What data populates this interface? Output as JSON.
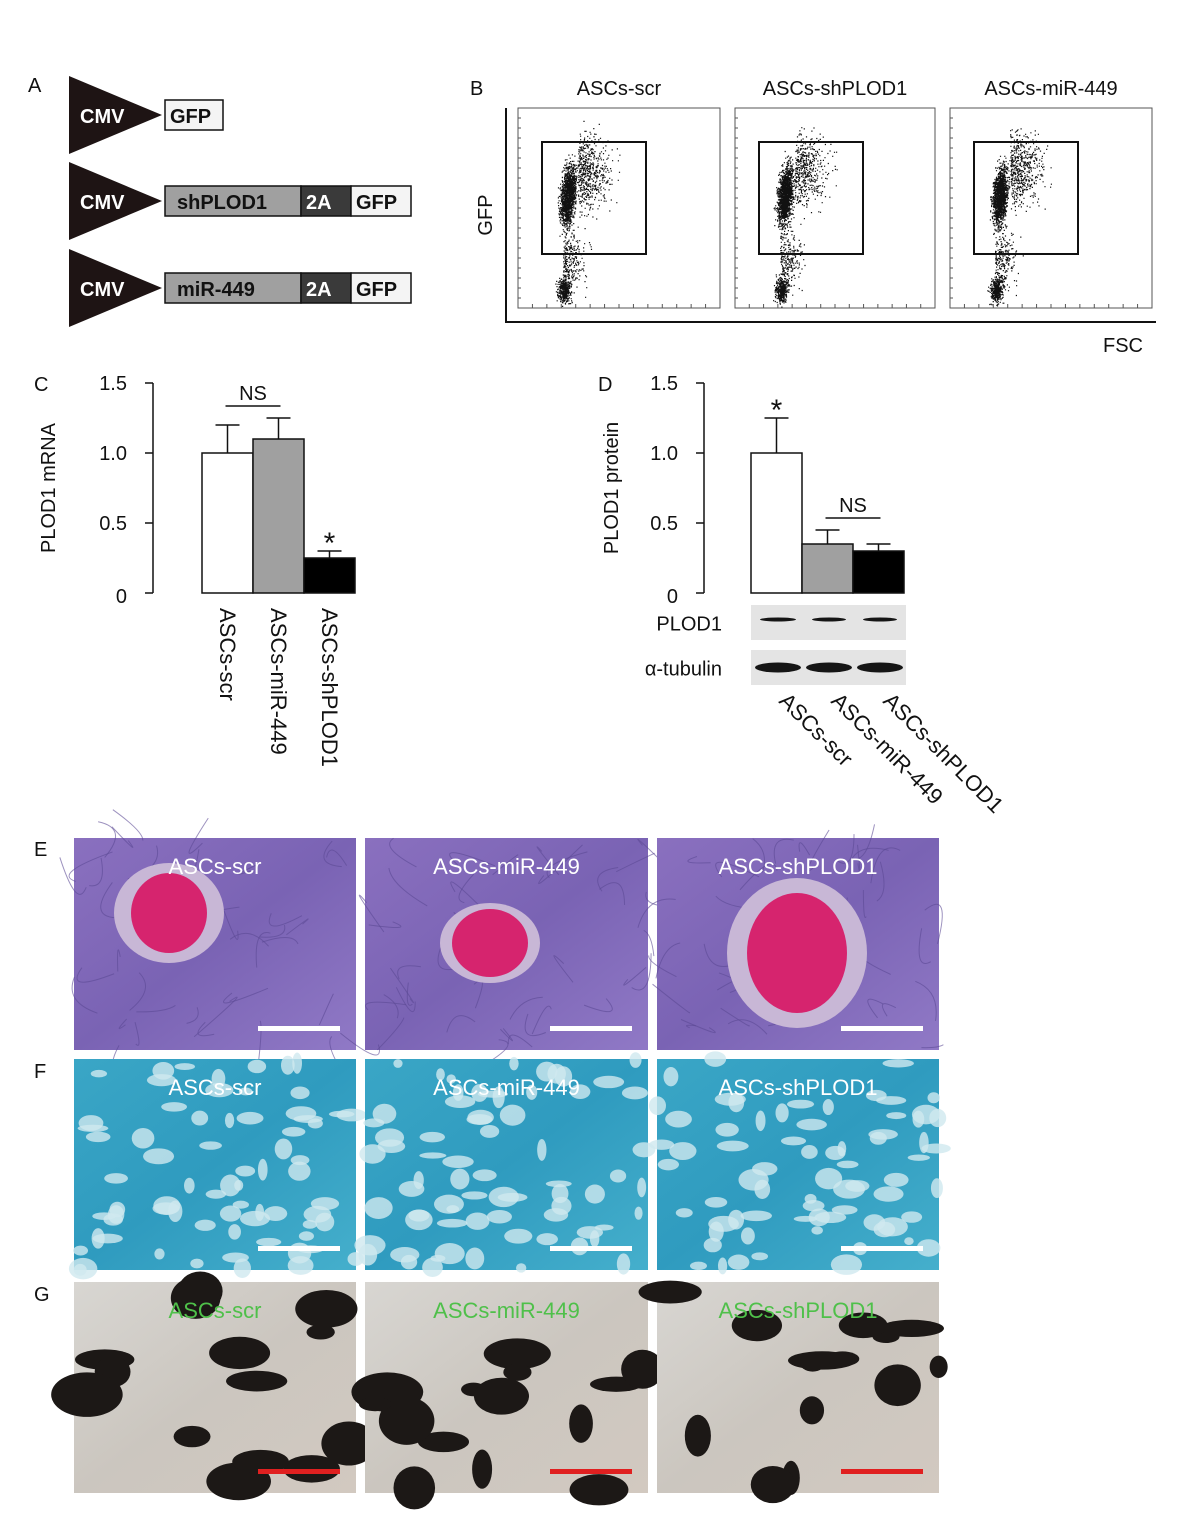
{
  "panels": {
    "A": {
      "letter": "A",
      "constructs": [
        {
          "promoter": "CMV",
          "parts": [
            {
              "label": "GFP",
              "color": "#f4f4f4"
            }
          ]
        },
        {
          "promoter": "CMV",
          "parts": [
            {
              "label": "shPLOD1",
              "color": "#a0a0a0"
            },
            {
              "label": "2A",
              "color": "#3a3a3a"
            },
            {
              "label": "GFP",
              "color": "#f4f4f4"
            }
          ]
        },
        {
          "promoter": "CMV",
          "parts": [
            {
              "label": "miR-449",
              "color": "#a0a0a0"
            },
            {
              "label": "2A",
              "color": "#3a3a3a"
            },
            {
              "label": "GFP",
              "color": "#f4f4f4"
            }
          ]
        }
      ]
    },
    "B": {
      "letter": "B",
      "plots": [
        "ASCs-scr",
        "ASCs-shPLOD1",
        "ASCs-miR-449"
      ],
      "ylabel": "GFP",
      "xlabel": "FSC"
    },
    "E": {
      "letter": "E",
      "images": [
        "ASCs-scr",
        "ASCs-miR-449",
        "ASCs-shPLOD1"
      ],
      "scalebar_color": "#ffffff"
    },
    "F": {
      "letter": "F",
      "images": [
        "ASCs-scr",
        "ASCs-miR-449",
        "ASCs-shPLOD1"
      ],
      "scalebar_color": "#ffffff"
    },
    "G": {
      "letter": "G",
      "images": [
        "ASCs-scr",
        "ASCs-miR-449",
        "ASCs-shPLOD1"
      ],
      "label_color": "#4fc04a",
      "scalebar_color": "#e02020"
    },
    "D_blot": {
      "rows": [
        "PLOD1",
        "α-tubulin"
      ]
    }
  },
  "chart_data": [
    {
      "panel": "C",
      "letter": "C",
      "type": "bar",
      "ylabel": "PLOD1 mRNA",
      "ylim": [
        0,
        1.5
      ],
      "yticks": [
        "0",
        "0.5",
        "1.0",
        "1.5"
      ],
      "categories": [
        "ASCs-scr",
        "ASCs-miR-449",
        "ASCs-shPLOD1"
      ],
      "values": [
        1.0,
        1.1,
        0.25
      ],
      "errors": [
        0.2,
        0.15,
        0.05
      ],
      "colors": [
        "#ffffff",
        "#a0a0a0",
        "#000000"
      ],
      "annotations": [
        {
          "text": "NS",
          "between": [
            "ASCs-scr",
            "ASCs-miR-449"
          ]
        },
        {
          "text": "*",
          "on": "ASCs-shPLOD1"
        }
      ]
    },
    {
      "panel": "D",
      "letter": "D",
      "type": "bar",
      "ylabel": "PLOD1 protein",
      "ylim": [
        0,
        1.5
      ],
      "yticks": [
        "0",
        "0.5",
        "1.0",
        "1.5"
      ],
      "categories": [
        "ASCs-scr",
        "ASCs-miR-449",
        "ASCs-shPLOD1"
      ],
      "values": [
        1.0,
        0.35,
        0.3
      ],
      "errors": [
        0.25,
        0.1,
        0.05
      ],
      "colors": [
        "#ffffff",
        "#a0a0a0",
        "#000000"
      ],
      "annotations": [
        {
          "text": "*",
          "on": "ASCs-scr"
        },
        {
          "text": "NS",
          "between": [
            "ASCs-miR-449",
            "ASCs-shPLOD1"
          ]
        }
      ]
    }
  ]
}
